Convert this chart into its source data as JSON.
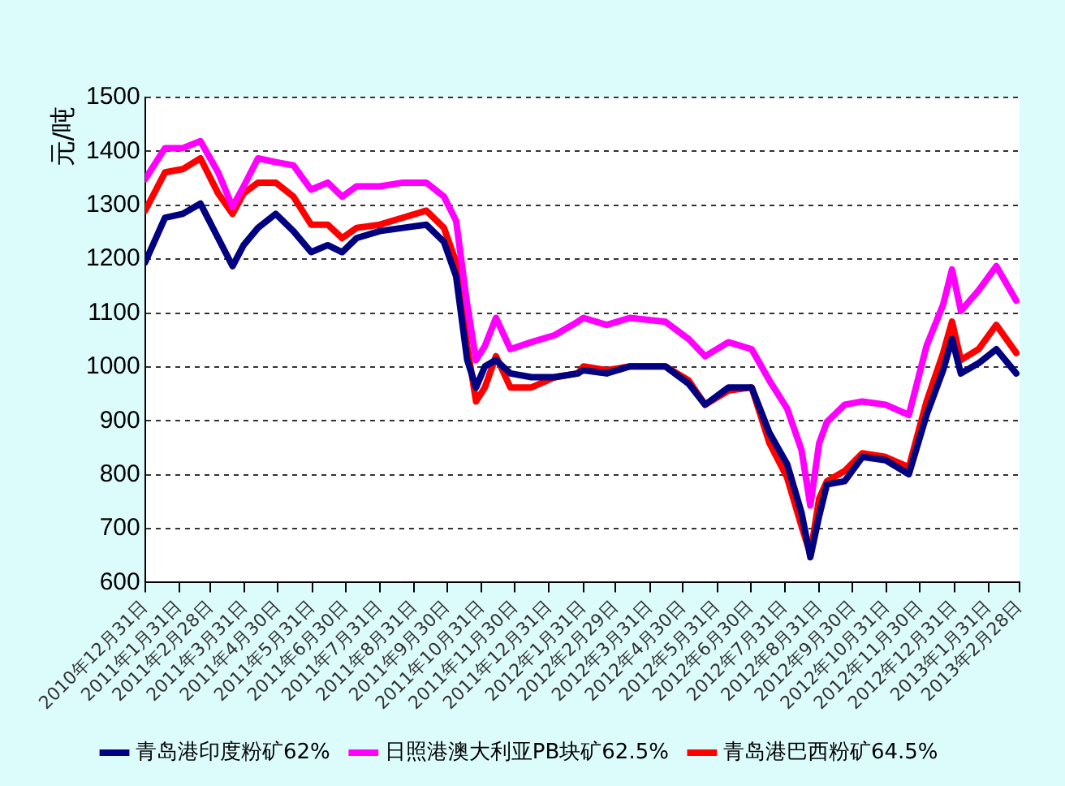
{
  "chart_data": {
    "type": "line",
    "ylabel": "元/吨",
    "x": [
      "2010-12-31",
      "2011-01-18",
      "2011-02-03",
      "2011-02-19",
      "2011-03-07",
      "2011-03-20",
      "2011-03-30",
      "2011-04-12",
      "2011-04-28",
      "2011-05-14",
      "2011-05-30",
      "2011-06-14",
      "2011-06-27",
      "2011-07-10",
      "2011-07-31",
      "2011-08-21",
      "2011-09-11",
      "2011-09-27",
      "2011-10-08",
      "2011-10-18",
      "2011-10-26",
      "2011-11-03",
      "2011-11-13",
      "2011-11-26",
      "2011-12-15",
      "2012-01-05",
      "2012-01-26",
      "2012-01-31",
      "2012-02-21",
      "2012-03-13",
      "2012-04-14",
      "2012-05-05",
      "2012-05-20",
      "2012-06-10",
      "2012-07-01",
      "2012-07-17",
      "2012-08-02",
      "2012-08-15",
      "2012-08-23",
      "2012-08-31",
      "2012-09-07",
      "2012-09-23",
      "2012-10-09",
      "2012-10-30",
      "2012-11-20",
      "2012-12-06",
      "2012-12-21",
      "2012-12-29",
      "2013-01-06",
      "2013-01-22",
      "2013-02-07",
      "2013-02-25"
    ],
    "series": [
      {
        "name": "青岛港印度粉矿62%",
        "color": "#000080",
        "values": [
          1194,
          1277,
          1284,
          1303,
          1239,
          1187,
          1226,
          1258,
          1284,
          1252,
          1213,
          1226,
          1213,
          1239,
          1252,
          1258,
          1264,
          1232,
          1168,
          1013,
          962,
          1001,
          1013,
          988,
          981,
          981,
          988,
          994,
          988,
          1001,
          1001,
          969,
          930,
          962,
          962,
          878,
          820,
          730,
          647,
          724,
          782,
          788,
          833,
          827,
          801,
          911,
          994,
          1052,
          988,
          1007,
          1033,
          988
        ]
      },
      {
        "name": "日照港澳大利亚PB块矿62.5%",
        "color": "#ff00ff",
        "values": [
          1348,
          1406,
          1406,
          1419,
          1361,
          1297,
          1335,
          1387,
          1380,
          1374,
          1329,
          1342,
          1316,
          1335,
          1335,
          1342,
          1342,
          1316,
          1271,
          1116,
          1013,
          1039,
          1091,
          1033,
          1046,
          1059,
          1084,
          1091,
          1078,
          1091,
          1084,
          1052,
          1020,
          1046,
          1033,
          975,
          923,
          846,
          743,
          859,
          898,
          930,
          936,
          930,
          911,
          1039,
          1116,
          1181,
          1104,
          1142,
          1187,
          1123
        ]
      },
      {
        "name": "青岛港巴西粉矿64.5%",
        "color": "#ff0000",
        "values": [
          1290,
          1361,
          1367,
          1387,
          1322,
          1284,
          1322,
          1342,
          1342,
          1316,
          1264,
          1264,
          1239,
          1258,
          1264,
          1277,
          1290,
          1258,
          1194,
          1039,
          936,
          962,
          1020,
          962,
          962,
          981,
          988,
          1001,
          994,
          1001,
          1001,
          975,
          930,
          956,
          962,
          859,
          795,
          705,
          653,
          756,
          788,
          807,
          840,
          833,
          814,
          936,
          1026,
          1084,
          1013,
          1033,
          1078,
          1026
        ]
      }
    ],
    "xlim": [
      "2010-12-31",
      "2013-02-28"
    ],
    "xticks": [
      {
        "value": "2010-12-31",
        "label": "2010年12月31日"
      },
      {
        "value": "2011-01-31",
        "label": "2011年1月31日"
      },
      {
        "value": "2011-02-28",
        "label": "2011年2月28日"
      },
      {
        "value": "2011-03-31",
        "label": "2011年3月31日"
      },
      {
        "value": "2011-04-30",
        "label": "2011年4月30日"
      },
      {
        "value": "2011-05-31",
        "label": "2011年5月31日"
      },
      {
        "value": "2011-06-30",
        "label": "2011年6月30日"
      },
      {
        "value": "2011-07-31",
        "label": "2011年7月31日"
      },
      {
        "value": "2011-08-31",
        "label": "2011年8月31日"
      },
      {
        "value": "2011-09-30",
        "label": "2011年9月30日"
      },
      {
        "value": "2011-10-31",
        "label": "2011年10月31日"
      },
      {
        "value": "2011-11-30",
        "label": "2011年11月30日"
      },
      {
        "value": "2011-12-31",
        "label": "2011年12月31日"
      },
      {
        "value": "2012-01-31",
        "label": "2012年1月31日"
      },
      {
        "value": "2012-02-29",
        "label": "2012年2月29日"
      },
      {
        "value": "2012-03-31",
        "label": "2012年3月31日"
      },
      {
        "value": "2012-04-30",
        "label": "2012年4月30日"
      },
      {
        "value": "2012-05-31",
        "label": "2012年5月31日"
      },
      {
        "value": "2012-06-30",
        "label": "2012年6月30日"
      },
      {
        "value": "2012-07-31",
        "label": "2012年7月31日"
      },
      {
        "value": "2012-08-31",
        "label": "2012年8月31日"
      },
      {
        "value": "2012-09-30",
        "label": "2012年9月30日"
      },
      {
        "value": "2012-10-31",
        "label": "2012年10月31日"
      },
      {
        "value": "2012-11-30",
        "label": "2012年11月30日"
      },
      {
        "value": "2012-12-31",
        "label": "2012年12月31日"
      },
      {
        "value": "2013-01-31",
        "label": "2013年1月31日"
      },
      {
        "value": "2013-02-28",
        "label": "2013年2月28日"
      }
    ],
    "ylim": [
      600,
      1500
    ],
    "yticks": [
      600,
      700,
      800,
      900,
      1000,
      1100,
      1200,
      1300,
      1400,
      1500
    ],
    "grid": "y",
    "legend": "bottom",
    "marker": "none",
    "line_style": "solid"
  }
}
